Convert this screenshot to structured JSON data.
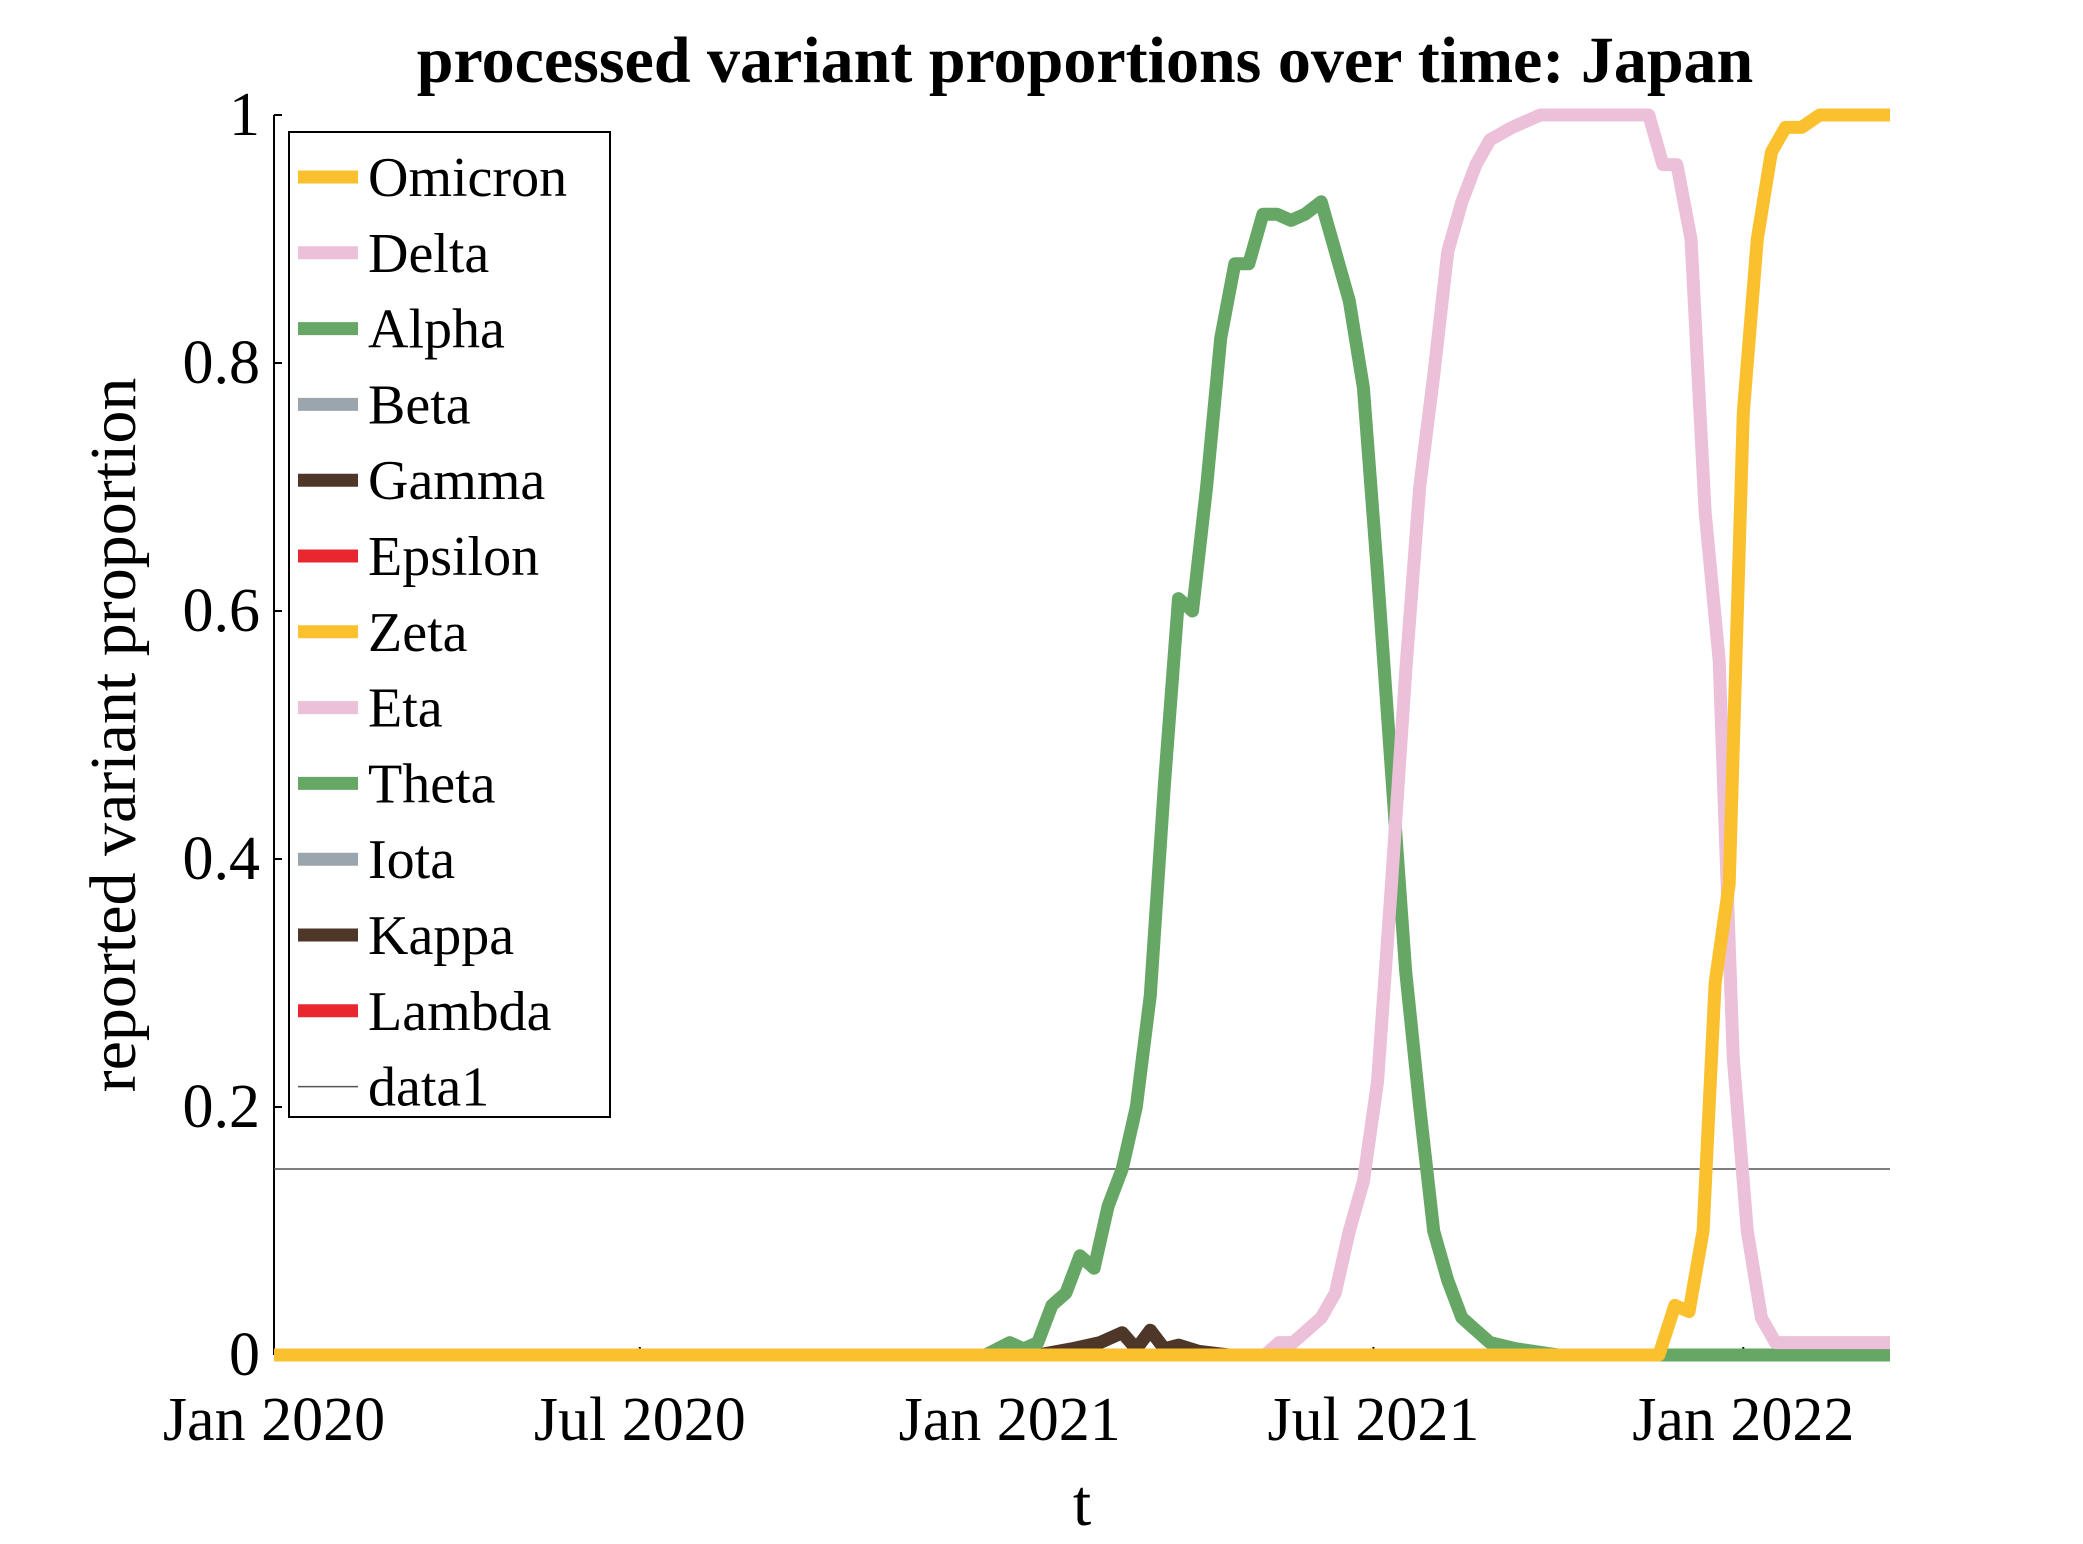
{
  "chart_data": {
    "type": "line",
    "title": "processed variant proportions over time: Japan",
    "xlabel": "t",
    "ylabel": "reported variant proportion",
    "xlim": [
      "2020-01-01",
      "2022-03-15"
    ],
    "ylim": [
      0,
      1
    ],
    "x_ticks": [
      {
        "date": "2020-01-01",
        "label": "Jan 2020"
      },
      {
        "date": "2020-07-01",
        "label": "Jul 2020"
      },
      {
        "date": "2021-01-01",
        "label": "Jan 2021"
      },
      {
        "date": "2021-07-01",
        "label": "Jul 2021"
      },
      {
        "date": "2022-01-01",
        "label": "Jan 2022"
      }
    ],
    "y_ticks": [
      {
        "value": 0,
        "label": "0"
      },
      {
        "value": 0.2,
        "label": "0.2"
      },
      {
        "value": 0.4,
        "label": "0.4"
      },
      {
        "value": 0.6,
        "label": "0.6"
      },
      {
        "value": 0.8,
        "label": "0.8"
      },
      {
        "value": 1,
        "label": "1"
      }
    ],
    "grid": false,
    "legend_position": "top-left",
    "reference_line": {
      "name": "data1",
      "y": 0.15,
      "color": "#555555"
    },
    "series": [
      {
        "name": "Omicron",
        "color": "#FBC02D",
        "points": [
          [
            "2020-01-01",
            0
          ],
          [
            "2021-11-20",
            0
          ],
          [
            "2021-11-28",
            0.04
          ],
          [
            "2021-12-05",
            0.035
          ],
          [
            "2021-12-12",
            0.1
          ],
          [
            "2021-12-18",
            0.3
          ],
          [
            "2021-12-25",
            0.38
          ],
          [
            "2022-01-01",
            0.76
          ],
          [
            "2022-01-08",
            0.9
          ],
          [
            "2022-01-15",
            0.97
          ],
          [
            "2022-01-22",
            0.99
          ],
          [
            "2022-01-30",
            0.99
          ],
          [
            "2022-02-08",
            1
          ],
          [
            "2022-03-15",
            1
          ]
        ]
      },
      {
        "name": "Delta",
        "color": "#EBC0D8",
        "points": [
          [
            "2020-01-01",
            0
          ],
          [
            "2021-05-08",
            0
          ],
          [
            "2021-05-15",
            0.01
          ],
          [
            "2021-05-22",
            0.01
          ],
          [
            "2021-05-29",
            0.02
          ],
          [
            "2021-06-05",
            0.03
          ],
          [
            "2021-06-12",
            0.05
          ],
          [
            "2021-06-19",
            0.1
          ],
          [
            "2021-06-26",
            0.14
          ],
          [
            "2021-07-03",
            0.22
          ],
          [
            "2021-07-10",
            0.38
          ],
          [
            "2021-07-17",
            0.55
          ],
          [
            "2021-07-24",
            0.7
          ],
          [
            "2021-07-31",
            0.79
          ],
          [
            "2021-08-07",
            0.89
          ],
          [
            "2021-08-14",
            0.93
          ],
          [
            "2021-08-21",
            0.96
          ],
          [
            "2021-08-28",
            0.98
          ],
          [
            "2021-09-08",
            0.99
          ],
          [
            "2021-09-22",
            1
          ],
          [
            "2021-11-15",
            1
          ],
          [
            "2021-11-22",
            0.96
          ],
          [
            "2021-11-29",
            0.96
          ],
          [
            "2021-12-06",
            0.9
          ],
          [
            "2021-12-13",
            0.68
          ],
          [
            "2021-12-20",
            0.56
          ],
          [
            "2021-12-27",
            0.24
          ],
          [
            "2022-01-03",
            0.1
          ],
          [
            "2022-01-10",
            0.03
          ],
          [
            "2022-01-17",
            0.01
          ],
          [
            "2022-03-15",
            0.01
          ]
        ]
      },
      {
        "name": "Alpha",
        "color": "#66A766",
        "points": [
          [
            "2020-01-01",
            0
          ],
          [
            "2020-12-20",
            0
          ],
          [
            "2021-01-01",
            0.01
          ],
          [
            "2021-01-08",
            0.005
          ],
          [
            "2021-01-15",
            0.01
          ],
          [
            "2021-01-22",
            0.04
          ],
          [
            "2021-01-29",
            0.05
          ],
          [
            "2021-02-05",
            0.08
          ],
          [
            "2021-02-12",
            0.07
          ],
          [
            "2021-02-19",
            0.12
          ],
          [
            "2021-02-26",
            0.15
          ],
          [
            "2021-03-05",
            0.2
          ],
          [
            "2021-03-12",
            0.29
          ],
          [
            "2021-03-19",
            0.46
          ],
          [
            "2021-03-26",
            0.61
          ],
          [
            "2021-04-02",
            0.6
          ],
          [
            "2021-04-09",
            0.7
          ],
          [
            "2021-04-16",
            0.82
          ],
          [
            "2021-04-23",
            0.88
          ],
          [
            "2021-04-30",
            0.88
          ],
          [
            "2021-05-07",
            0.92
          ],
          [
            "2021-05-14",
            0.92
          ],
          [
            "2021-05-21",
            0.915
          ],
          [
            "2021-05-28",
            0.92
          ],
          [
            "2021-06-05",
            0.93
          ],
          [
            "2021-06-12",
            0.89
          ],
          [
            "2021-06-19",
            0.85
          ],
          [
            "2021-06-26",
            0.78
          ],
          [
            "2021-07-03",
            0.63
          ],
          [
            "2021-07-10",
            0.47
          ],
          [
            "2021-07-17",
            0.31
          ],
          [
            "2021-07-24",
            0.2
          ],
          [
            "2021-07-31",
            0.1
          ],
          [
            "2021-08-07",
            0.06
          ],
          [
            "2021-08-14",
            0.03
          ],
          [
            "2021-08-21",
            0.02
          ],
          [
            "2021-08-28",
            0.01
          ],
          [
            "2021-09-10",
            0.005
          ],
          [
            "2021-10-01",
            0
          ],
          [
            "2022-03-15",
            0
          ]
        ]
      },
      {
        "name": "Beta",
        "color": "#9BA5AE",
        "points": [
          [
            "2020-01-01",
            0
          ],
          [
            "2022-03-15",
            0
          ]
        ]
      },
      {
        "name": "Gamma",
        "color": "#4E3629",
        "points": [
          [
            "2020-01-01",
            0
          ],
          [
            "2021-01-15",
            0
          ],
          [
            "2021-02-01",
            0.005
          ],
          [
            "2021-02-15",
            0.01
          ],
          [
            "2021-02-26",
            0.018
          ],
          [
            "2021-03-05",
            0.005
          ],
          [
            "2021-03-12",
            0.02
          ],
          [
            "2021-03-19",
            0.005
          ],
          [
            "2021-03-26",
            0.008
          ],
          [
            "2021-04-05",
            0.003
          ],
          [
            "2021-04-20",
            0
          ],
          [
            "2022-03-15",
            0
          ]
        ]
      },
      {
        "name": "Epsilon",
        "color": "#E8282E",
        "points": [
          [
            "2020-01-01",
            0
          ],
          [
            "2022-03-15",
            0
          ]
        ]
      },
      {
        "name": "Zeta",
        "color": "#FBC02D",
        "points": [
          [
            "2020-01-01",
            0
          ],
          [
            "2022-03-15",
            0
          ]
        ]
      },
      {
        "name": "Eta",
        "color": "#EBC0D8",
        "points": [
          [
            "2020-01-01",
            0
          ],
          [
            "2022-03-15",
            0
          ]
        ]
      },
      {
        "name": "Theta",
        "color": "#66A766",
        "points": [
          [
            "2020-01-01",
            0
          ],
          [
            "2022-03-15",
            0
          ]
        ]
      },
      {
        "name": "Iota",
        "color": "#9BA5AE",
        "points": [
          [
            "2020-01-01",
            0
          ],
          [
            "2022-03-15",
            0
          ]
        ]
      },
      {
        "name": "Kappa",
        "color": "#4E3629",
        "points": [
          [
            "2020-01-01",
            0
          ],
          [
            "2022-03-15",
            0
          ]
        ]
      },
      {
        "name": "Lambda",
        "color": "#E8282E",
        "points": [
          [
            "2020-01-01",
            0
          ],
          [
            "2022-03-15",
            0
          ]
        ]
      }
    ]
  }
}
